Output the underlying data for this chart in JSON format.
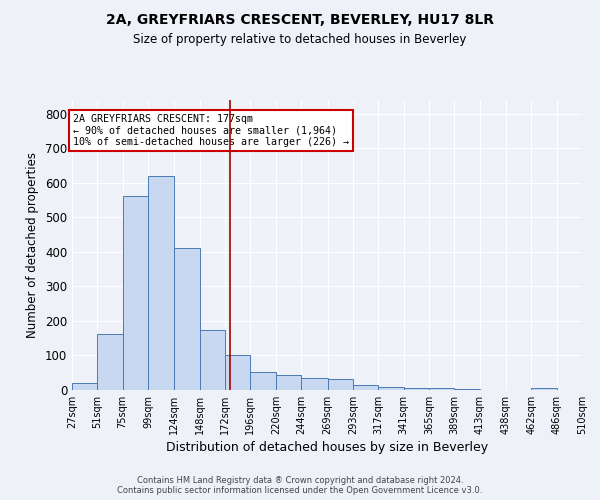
{
  "title": "2A, GREYFRIARS CRESCENT, BEVERLEY, HU17 8LR",
  "subtitle": "Size of property relative to detached houses in Beverley",
  "xlabel": "Distribution of detached houses by size in Beverley",
  "ylabel": "Number of detached properties",
  "footnote1": "Contains HM Land Registry data ® Crown copyright and database right 2024.",
  "footnote2": "Contains public sector information licensed under the Open Government Licence v3.0.",
  "bar_left_edges": [
    27,
    51,
    75,
    99,
    124,
    148,
    172,
    196,
    220,
    244,
    269,
    293,
    317,
    341,
    365,
    389,
    413,
    438,
    462,
    486
  ],
  "bar_widths": [
    24,
    24,
    24,
    25,
    24,
    24,
    24,
    24,
    24,
    25,
    24,
    24,
    24,
    24,
    24,
    24,
    25,
    24,
    24,
    24
  ],
  "bar_heights": [
    20,
    163,
    562,
    619,
    412,
    174,
    102,
    52,
    43,
    36,
    31,
    15,
    10,
    7,
    6,
    3,
    0,
    0,
    7,
    0
  ],
  "tick_labels": [
    "27sqm",
    "51sqm",
    "75sqm",
    "99sqm",
    "124sqm",
    "148sqm",
    "172sqm",
    "196sqm",
    "220sqm",
    "244sqm",
    "269sqm",
    "293sqm",
    "317sqm",
    "341sqm",
    "365sqm",
    "389sqm",
    "413sqm",
    "438sqm",
    "462sqm",
    "486sqm",
    "510sqm"
  ],
  "tick_positions": [
    27,
    51,
    75,
    99,
    124,
    148,
    172,
    196,
    220,
    244,
    269,
    293,
    317,
    341,
    365,
    389,
    413,
    438,
    462,
    486,
    510
  ],
  "bar_color": "#c8d8f0",
  "bar_edge_color": "#4a7ab5",
  "bg_color": "#eef2f8",
  "grid_color": "#ffffff",
  "vline_x": 177,
  "vline_color": "#aa0000",
  "annotation_text": "2A GREYFRIARS CRESCENT: 177sqm\n← 90% of detached houses are smaller (1,964)\n10% of semi-detached houses are larger (226) →",
  "annotation_box_color": "#ffffff",
  "annotation_box_edge": "#cc0000",
  "ylim": [
    0,
    840
  ],
  "yticks": [
    0,
    100,
    200,
    300,
    400,
    500,
    600,
    700,
    800
  ]
}
